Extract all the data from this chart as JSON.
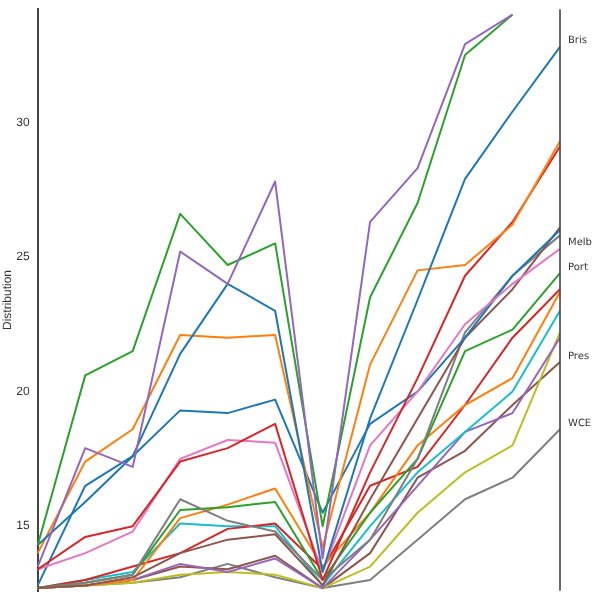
{
  "chart_data": {
    "type": "line",
    "ylabel": "Distribution",
    "categories": [
      null,
      null,
      null,
      null,
      null,
      null,
      null,
      null,
      null,
      null,
      null,
      null
    ],
    "ylim": [
      12.6,
      34.2
    ],
    "yticks": [
      15,
      20,
      25,
      30
    ],
    "grid": false,
    "legend": false,
    "marker": "none",
    "line_style": "solid",
    "series": [
      {
        "color": "#9467bd",
        "values": [
          13.5,
          17.9,
          17.2,
          25.2,
          24.0,
          27.8,
          13.8,
          26.3,
          28.3,
          32.9,
          34.0,
          null
        ]
      },
      {
        "color": "#2ca02c",
        "values": [
          14.3,
          20.6,
          21.5,
          26.6,
          24.7,
          25.5,
          15.0,
          23.5,
          27.0,
          32.5,
          34.0,
          null
        ]
      },
      {
        "name": "Bris",
        "color": "#1f77b4",
        "values": [
          14.3,
          15.9,
          17.6,
          21.4,
          24.0,
          23.0,
          13.3,
          19.0,
          23.4,
          27.9,
          30.4,
          32.8
        ]
      },
      {
        "color": "#ff7f0e",
        "values": [
          14.0,
          17.4,
          18.6,
          22.1,
          22.0,
          22.1,
          14.2,
          21.0,
          24.5,
          24.7,
          26.2,
          29.3
        ]
      },
      {
        "color": "#d62728",
        "values": [
          13.4,
          14.6,
          15.0,
          17.4,
          17.9,
          18.8,
          13.0,
          17.0,
          20.5,
          24.3,
          26.3,
          29.1
        ]
      },
      {
        "name": "Melb",
        "color": "#e377c2",
        "values": [
          13.4,
          14.0,
          14.8,
          17.5,
          18.2,
          18.1,
          13.3,
          18.0,
          20.0,
          22.5,
          24.0,
          25.3
        ]
      },
      {
        "color": "#1f77b4",
        "values": [
          12.8,
          16.5,
          17.6,
          19.3,
          19.2,
          19.7,
          15.5,
          18.8,
          20.0,
          22.0,
          24.3,
          26.0
        ]
      },
      {
        "color": "#8c564b",
        "values": [
          12.7,
          12.8,
          13.1,
          14.0,
          14.5,
          14.7,
          12.8,
          16.0,
          19.0,
          22.0,
          23.8,
          26.1
        ]
      },
      {
        "color": "#7f7f7f",
        "values": [
          12.7,
          12.9,
          13.2,
          16.0,
          15.2,
          14.8,
          13.0,
          14.5,
          17.5,
          22.2,
          24.3,
          25.8
        ]
      },
      {
        "name": "Port",
        "color": "#2ca02c",
        "values": [
          12.7,
          12.9,
          13.2,
          15.6,
          15.7,
          15.9,
          13.0,
          15.5,
          17.5,
          21.5,
          22.3,
          24.4
        ]
      },
      {
        "color": "#ff7f0e",
        "values": [
          12.7,
          12.8,
          13.0,
          15.3,
          15.8,
          16.4,
          13.5,
          15.5,
          18.0,
          19.5,
          20.5,
          23.7
        ]
      },
      {
        "color": "#d62728",
        "values": [
          12.7,
          13.0,
          13.5,
          14.0,
          14.9,
          15.1,
          13.4,
          16.5,
          17.2,
          19.5,
          22.0,
          23.8
        ]
      },
      {
        "color": "#17becf",
        "values": [
          12.7,
          13.0,
          13.3,
          15.1,
          15.0,
          15.0,
          12.8,
          15.0,
          17.0,
          18.5,
          20.0,
          23.0
        ]
      },
      {
        "color": "#9467bd",
        "values": [
          12.7,
          12.8,
          13.0,
          13.6,
          13.3,
          13.8,
          12.7,
          14.5,
          16.5,
          18.5,
          19.2,
          22.0
        ]
      },
      {
        "color": "#bcbd22",
        "values": [
          12.7,
          12.8,
          12.9,
          13.2,
          13.3,
          13.2,
          12.7,
          13.5,
          15.5,
          17.0,
          18.0,
          22.2
        ]
      },
      {
        "name": "Pres",
        "color": "#8c564b",
        "values": [
          12.7,
          12.8,
          13.0,
          13.5,
          13.4,
          13.9,
          12.7,
          14.0,
          16.8,
          17.8,
          19.5,
          21.1
        ]
      },
      {
        "name": "WCE",
        "color": "#7f7f7f",
        "values": [
          12.7,
          12.8,
          12.9,
          13.1,
          13.6,
          13.1,
          12.7,
          13.0,
          14.5,
          16.0,
          16.8,
          18.6
        ]
      }
    ]
  }
}
